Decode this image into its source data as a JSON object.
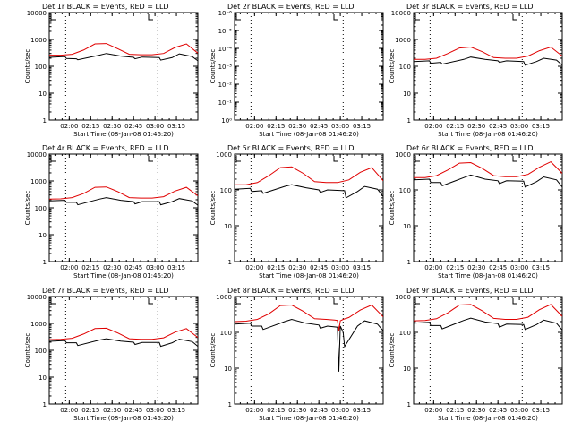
{
  "chart_data": [
    {
      "type": "line",
      "title": "Det 1r BLACK = Events, RED = LLD",
      "xlabel": "Start Time (08-Jan-08 01:46:20)",
      "ylabel": "Counts/sec",
      "y_scale": "log",
      "ylim": [
        1,
        10000
      ],
      "ytick_labels": [
        "1",
        "10",
        "100",
        "1000",
        "10000"
      ],
      "xtick_labels": [
        "02:00",
        "02:15",
        "02:30",
        "02:45",
        "03:00",
        "03:15"
      ],
      "xlim_minutes": [
        0,
        104
      ],
      "xtick_minutes": [
        14,
        29,
        44,
        59,
        74,
        89
      ],
      "dotted_vlines_minutes": [
        11.5,
        76
      ],
      "grid": false,
      "series": [
        {
          "color": "#000000",
          "x": [
            0,
            11,
            12,
            19,
            20,
            35,
            40,
            50,
            59,
            60,
            65,
            77,
            78,
            86,
            91,
            100,
            104
          ],
          "y": [
            215,
            230,
            195,
            190,
            175,
            260,
            300,
            240,
            215,
            190,
            220,
            210,
            170,
            210,
            290,
            230,
            160
          ]
        },
        {
          "color": "#e00000",
          "x": [
            0,
            8,
            16,
            24,
            32,
            40,
            48,
            56,
            64,
            72,
            80,
            88,
            96,
            104
          ],
          "y": [
            260,
            260,
            280,
            400,
            680,
            700,
            450,
            280,
            270,
            270,
            300,
            500,
            680,
            310
          ]
        }
      ]
    },
    {
      "type": "line",
      "title": "Det 2r BLACK = Events, RED = LLD",
      "xlabel": "Start Time (08-Jan-08 01:46:20)",
      "ylabel": "Counts/sec",
      "y_scale": "log",
      "ylim": [
        1e-06,
        1
      ],
      "ytick_labels": [
        "10⁰",
        "10⁻¹",
        "10⁻²",
        "10⁻³",
        "10⁻⁴",
        "10⁻⁵",
        "10⁻⁶"
      ],
      "xtick_labels": [
        "02:00",
        "02:15",
        "02:30",
        "02:45",
        "03:00",
        "03:15"
      ],
      "xlim_minutes": [
        0,
        104
      ],
      "xtick_minutes": [
        14,
        29,
        44,
        59,
        74,
        89
      ],
      "dotted_vlines_minutes": [
        11.5,
        76
      ],
      "grid": false,
      "series": []
    },
    {
      "type": "line",
      "title": "Det 3r BLACK = Events, RED = LLD",
      "xlabel": "Start Time (08-Jan-08 01:46:20)",
      "ylabel": "Counts/sec",
      "y_scale": "log",
      "ylim": [
        1,
        10000
      ],
      "ytick_labels": [
        "1",
        "10",
        "100",
        "1000",
        "10000"
      ],
      "xtick_labels": [
        "02:00",
        "02:15",
        "02:30",
        "02:45",
        "03:00",
        "03:15"
      ],
      "xlim_minutes": [
        0,
        104
      ],
      "xtick_minutes": [
        14,
        29,
        44,
        59,
        74,
        89
      ],
      "dotted_vlines_minutes": [
        11.5,
        76
      ],
      "grid": false,
      "series": [
        {
          "color": "#000000",
          "x": [
            0,
            11,
            12,
            19,
            20,
            35,
            40,
            50,
            59,
            60,
            65,
            77,
            78,
            86,
            91,
            100,
            104
          ],
          "y": [
            150,
            160,
            130,
            140,
            120,
            180,
            220,
            180,
            160,
            140,
            160,
            150,
            110,
            150,
            200,
            170,
            110
          ]
        },
        {
          "color": "#e00000",
          "x": [
            0,
            8,
            16,
            24,
            32,
            40,
            48,
            56,
            64,
            72,
            80,
            88,
            96,
            104
          ],
          "y": [
            180,
            180,
            200,
            300,
            480,
            520,
            350,
            210,
            200,
            200,
            240,
            380,
            520,
            240
          ]
        }
      ]
    },
    {
      "type": "line",
      "title": "Det 4r BLACK = Events, RED = LLD",
      "xlabel": "Start Time (08-Jan-08 01:46:20)",
      "ylabel": "Counts/sec",
      "y_scale": "log",
      "ylim": [
        1,
        10000
      ],
      "ytick_labels": [
        "1",
        "10",
        "100",
        "1000",
        "10000"
      ],
      "xtick_labels": [
        "02:00",
        "02:15",
        "02:30",
        "02:45",
        "03:00",
        "03:15"
      ],
      "xlim_minutes": [
        0,
        104
      ],
      "xtick_minutes": [
        14,
        29,
        44,
        59,
        74,
        89
      ],
      "dotted_vlines_minutes": [
        11.5,
        76
      ],
      "grid": false,
      "series": [
        {
          "color": "#000000",
          "x": [
            0,
            11,
            12,
            19,
            20,
            35,
            40,
            50,
            59,
            60,
            65,
            77,
            78,
            86,
            91,
            100,
            104
          ],
          "y": [
            180,
            190,
            160,
            160,
            130,
            210,
            240,
            190,
            170,
            140,
            170,
            170,
            130,
            170,
            220,
            180,
            125
          ]
        },
        {
          "color": "#e00000",
          "x": [
            0,
            8,
            16,
            24,
            32,
            40,
            48,
            56,
            64,
            72,
            80,
            88,
            96,
            104
          ],
          "y": [
            210,
            215,
            240,
            340,
            580,
            600,
            400,
            240,
            230,
            230,
            260,
            420,
            580,
            280
          ]
        }
      ]
    },
    {
      "type": "line",
      "title": "Det 5r BLACK = Events, RED = LLD",
      "xlabel": "Start Time (08-Jan-08 01:46:20)",
      "ylabel": "Counts/sec",
      "y_scale": "log",
      "ylim": [
        1,
        1000
      ],
      "ytick_labels": [
        "1",
        "10",
        "100",
        "1000"
      ],
      "xtick_labels": [
        "02:00",
        "02:15",
        "02:30",
        "02:45",
        "03:00",
        "03:15"
      ],
      "xlim_minutes": [
        0,
        104
      ],
      "xtick_minutes": [
        14,
        29,
        44,
        59,
        74,
        89
      ],
      "dotted_vlines_minutes": [
        11.5,
        76
      ],
      "grid": false,
      "series": [
        {
          "color": "#000000",
          "x": [
            0,
            11,
            12,
            19,
            20,
            35,
            40,
            50,
            59,
            60,
            65,
            77,
            78,
            86,
            91,
            100,
            104
          ],
          "y": [
            105,
            110,
            90,
            95,
            80,
            125,
            140,
            115,
            100,
            85,
            100,
            95,
            60,
            90,
            125,
            105,
            65
          ]
        },
        {
          "color": "#e00000",
          "x": [
            0,
            8,
            16,
            24,
            32,
            40,
            48,
            56,
            64,
            72,
            80,
            88,
            96,
            104
          ],
          "y": [
            140,
            140,
            160,
            250,
            420,
            440,
            290,
            170,
            160,
            160,
            190,
            310,
            420,
            180
          ]
        }
      ]
    },
    {
      "type": "line",
      "title": "Det 6r BLACK = Events, RED = LLD",
      "xlabel": "Start Time (08-Jan-08 01:46:20)",
      "ylabel": "Counts/sec",
      "y_scale": "log",
      "ylim": [
        1,
        1000
      ],
      "ytick_labels": [
        "1",
        "10",
        "100",
        "1000"
      ],
      "xtick_labels": [
        "02:00",
        "02:15",
        "02:30",
        "02:45",
        "03:00",
        "03:15"
      ],
      "xlim_minutes": [
        0,
        104
      ],
      "xtick_minutes": [
        14,
        29,
        44,
        59,
        74,
        89
      ],
      "dotted_vlines_minutes": [
        11.5,
        76
      ],
      "grid": false,
      "series": [
        {
          "color": "#000000",
          "x": [
            0,
            11,
            12,
            19,
            20,
            35,
            40,
            50,
            59,
            60,
            65,
            77,
            78,
            86,
            91,
            100,
            104
          ],
          "y": [
            190,
            200,
            160,
            160,
            130,
            220,
            260,
            200,
            180,
            150,
            180,
            175,
            120,
            170,
            230,
            190,
            120
          ]
        },
        {
          "color": "#e00000",
          "x": [
            0,
            8,
            16,
            24,
            32,
            40,
            48,
            56,
            64,
            72,
            80,
            88,
            96,
            104
          ],
          "y": [
            220,
            220,
            250,
            360,
            560,
            580,
            400,
            250,
            235,
            235,
            270,
            430,
            610,
            290
          ]
        }
      ]
    },
    {
      "type": "line",
      "title": "Det 7r BLACK = Events, RED = LLD",
      "xlabel": "Start Time (08-Jan-08 01:46:20)",
      "ylabel": "Counts/sec",
      "y_scale": "log",
      "ylim": [
        1,
        10000
      ],
      "ytick_labels": [
        "1",
        "10",
        "100",
        "1000",
        "10000"
      ],
      "xtick_labels": [
        "02:00",
        "02:15",
        "02:30",
        "02:45",
        "03:00",
        "03:15"
      ],
      "xlim_minutes": [
        0,
        104
      ],
      "xtick_minutes": [
        14,
        29,
        44,
        59,
        74,
        89
      ],
      "dotted_vlines_minutes": [
        11.5,
        76
      ],
      "grid": false,
      "series": [
        {
          "color": "#000000",
          "x": [
            0,
            11,
            12,
            19,
            20,
            35,
            40,
            50,
            59,
            60,
            65,
            77,
            78,
            86,
            91,
            100,
            104
          ],
          "y": [
            215,
            230,
            190,
            190,
            150,
            240,
            270,
            220,
            200,
            165,
            195,
            195,
            140,
            190,
            260,
            210,
            140
          ]
        },
        {
          "color": "#e00000",
          "x": [
            0,
            8,
            16,
            24,
            32,
            40,
            48,
            56,
            64,
            72,
            80,
            88,
            96,
            104
          ],
          "y": [
            250,
            255,
            280,
            400,
            640,
            660,
            440,
            270,
            255,
            255,
            290,
            470,
            640,
            300
          ]
        }
      ]
    },
    {
      "type": "line",
      "title": "Det 8r BLACK = Events, RED = LLD",
      "xlabel": "Start Time (08-Jan-08 01:46:20)",
      "ylabel": "Counts/sec",
      "y_scale": "log",
      "ylim": [
        1,
        1000
      ],
      "ytick_labels": [
        "1",
        "10",
        "100",
        "1000"
      ],
      "xtick_labels": [
        "02:00",
        "02:15",
        "02:30",
        "02:45",
        "03:00",
        "03:15"
      ],
      "xlim_minutes": [
        0,
        104
      ],
      "xtick_minutes": [
        14,
        29,
        44,
        59,
        74,
        89
      ],
      "dotted_vlines_minutes": [
        11.5,
        76
      ],
      "grid": false,
      "series": [
        {
          "color": "#000000",
          "x": [
            0,
            11,
            12,
            19,
            20,
            35,
            40,
            50,
            59,
            60,
            65,
            72,
            73,
            74,
            76,
            77,
            86,
            91,
            100,
            104
          ],
          "y": [
            170,
            180,
            150,
            150,
            120,
            200,
            230,
            180,
            160,
            130,
            150,
            140,
            8,
            150,
            100,
            40,
            150,
            210,
            170,
            110
          ]
        },
        {
          "color": "#e00000",
          "x": [
            0,
            8,
            16,
            24,
            32,
            40,
            48,
            56,
            64,
            70,
            72,
            73,
            74,
            76,
            80,
            88,
            96,
            104
          ],
          "y": [
            200,
            205,
            230,
            330,
            560,
            580,
            390,
            240,
            230,
            220,
            215,
            110,
            210,
            230,
            260,
            420,
            580,
            270
          ]
        }
      ]
    },
    {
      "type": "line",
      "title": "Det 9r BLACK = Events, RED = LLD",
      "xlabel": "Start Time (08-Jan-08 01:46:20)",
      "ylabel": "Counts/sec",
      "y_scale": "log",
      "ylim": [
        1,
        1000
      ],
      "ytick_labels": [
        "1",
        "10",
        "100",
        "1000"
      ],
      "xtick_labels": [
        "02:00",
        "02:15",
        "02:30",
        "02:45",
        "03:00",
        "03:15"
      ],
      "xlim_minutes": [
        0,
        104
      ],
      "xtick_minutes": [
        14,
        29,
        44,
        59,
        74,
        89
      ],
      "dotted_vlines_minutes": [
        11.5,
        76
      ],
      "grid": false,
      "series": [
        {
          "color": "#000000",
          "x": [
            0,
            11,
            12,
            19,
            20,
            35,
            40,
            50,
            59,
            60,
            65,
            77,
            78,
            86,
            91,
            100,
            104
          ],
          "y": [
            180,
            190,
            155,
            155,
            125,
            215,
            250,
            195,
            175,
            140,
            170,
            165,
            120,
            165,
            220,
            180,
            115
          ]
        },
        {
          "color": "#e00000",
          "x": [
            0,
            8,
            16,
            24,
            32,
            40,
            48,
            56,
            64,
            72,
            80,
            88,
            96,
            104
          ],
          "y": [
            210,
            215,
            240,
            350,
            580,
            600,
            400,
            245,
            230,
            230,
            265,
            430,
            600,
            280
          ]
        }
      ]
    }
  ]
}
